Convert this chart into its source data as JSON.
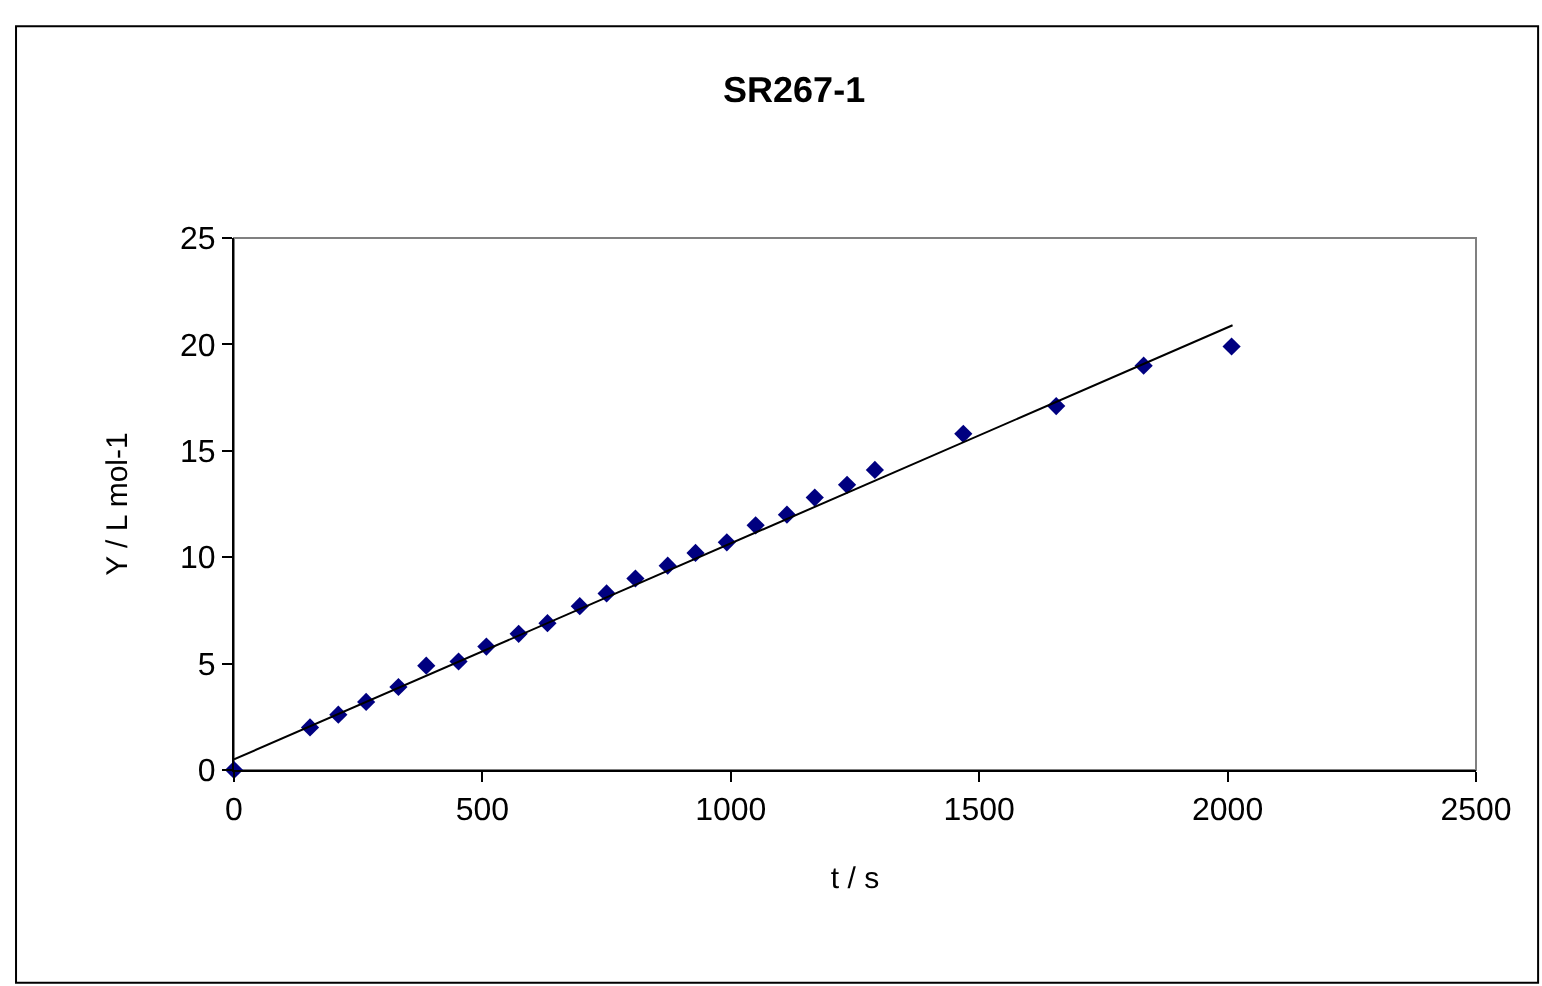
{
  "chart_data": {
    "type": "scatter",
    "title": "SR267-1",
    "xlabel": "t / s",
    "ylabel": "Y / L mol-1",
    "xlim": [
      0,
      2500
    ],
    "xticks": [
      0,
      500,
      1000,
      1500,
      2000,
      2500
    ],
    "ylim": [
      0,
      25
    ],
    "yticks": [
      0,
      5,
      10,
      15,
      20,
      25
    ],
    "grid": false,
    "series": [
      {
        "marker": "diamond",
        "color": "#000080",
        "x": [
          0,
          153,
          210,
          266,
          331,
          387,
          452,
          508,
          573,
          631,
          696,
          750,
          808,
          873,
          929,
          992,
          1050,
          1113,
          1169,
          1234,
          1290,
          1468,
          1655,
          1831,
          2008
        ],
        "values": [
          0,
          2.0,
          2.6,
          3.2,
          3.9,
          4.9,
          5.1,
          5.8,
          6.4,
          6.9,
          7.7,
          8.3,
          9.0,
          9.6,
          10.2,
          10.7,
          11.5,
          12.0,
          12.8,
          13.4,
          14.1,
          15.8,
          17.1,
          19.0,
          19.9
        ]
      },
      {
        "type": "line",
        "marker": "none",
        "color": "#000000",
        "x": [
          0,
          2010
        ],
        "values": [
          0.5,
          20.9
        ]
      }
    ]
  }
}
